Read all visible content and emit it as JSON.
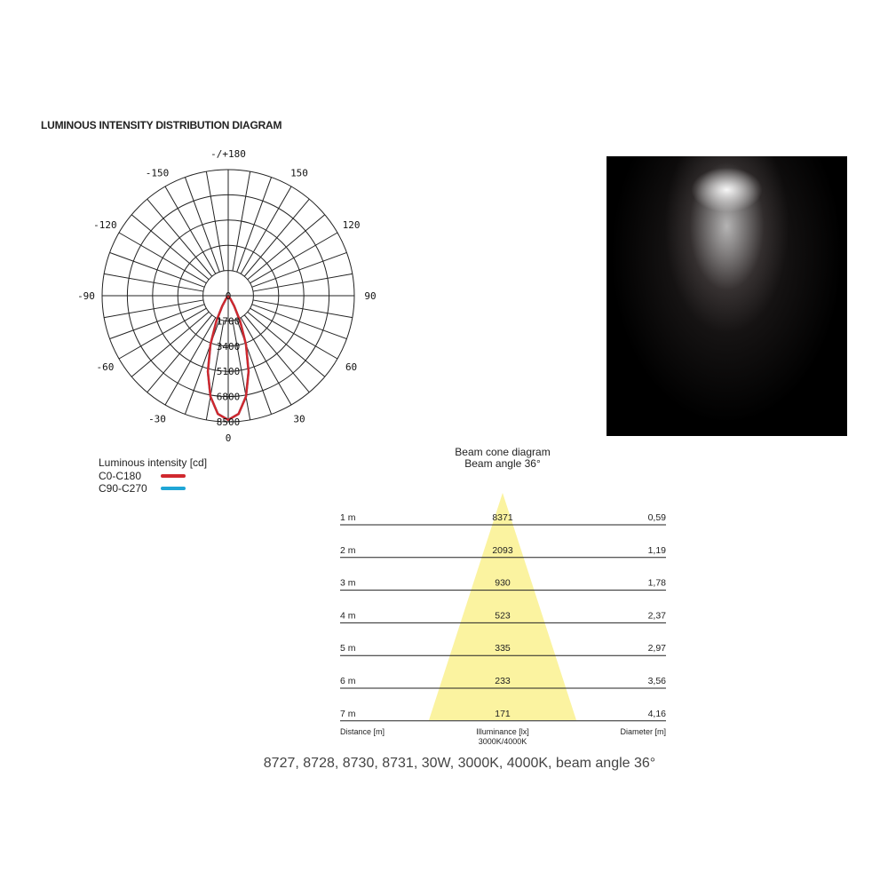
{
  "title": "LUMINOUS INTENSITY DISTRIBUTION DIAGRAM",
  "chart_data": [
    {
      "type": "polar",
      "angle_labels": [
        "-/+180",
        "150",
        "120",
        "90",
        "60",
        "30",
        "0",
        "-30",
        "-60",
        "-90",
        "-120",
        "-150"
      ],
      "radial_ticks": [
        0,
        1700,
        3400,
        5100,
        6800,
        8500
      ],
      "rmax": 8500,
      "legend_title": "Luminous intensity [cd]",
      "series": [
        {
          "name": "C0-C180",
          "color": "#d0282e",
          "angles": [
            0,
            5,
            10,
            15,
            20,
            25,
            30,
            35,
            40,
            45
          ],
          "values": [
            8371,
            8000,
            6900,
            5300,
            3500,
            1900,
            800,
            250,
            60,
            0
          ]
        },
        {
          "name": "C90-C270",
          "color": "#1fa6d6",
          "angles": [
            0,
            5,
            10,
            15,
            20,
            25,
            30,
            35,
            40,
            45
          ],
          "values": [
            8371,
            8000,
            6900,
            5300,
            3500,
            1900,
            800,
            250,
            60,
            0
          ]
        }
      ]
    },
    {
      "type": "table",
      "title": "Beam cone diagram",
      "subtitle": "Beam angle 36°",
      "beam_angle": 36,
      "cone_color": "#fbf3a0",
      "rows": [
        {
          "distance": "1 m",
          "illuminance": "8371",
          "diameter": "0,59"
        },
        {
          "distance": "2 m",
          "illuminance": "2093",
          "diameter": "1,19"
        },
        {
          "distance": "3 m",
          "illuminance": "930",
          "diameter": "1,78"
        },
        {
          "distance": "4 m",
          "illuminance": "523",
          "diameter": "2,37"
        },
        {
          "distance": "5 m",
          "illuminance": "335",
          "diameter": "2,97"
        },
        {
          "distance": "6 m",
          "illuminance": "233",
          "diameter": "3,56"
        },
        {
          "distance": "7 m",
          "illuminance": "171",
          "diameter": "4,16"
        }
      ],
      "columns": {
        "distance": "Distance [m]",
        "illuminance": "Illuminance [lx]",
        "illuminance_sub": "3000K/4000K",
        "diameter": "Diameter [m]"
      }
    }
  ],
  "caption": "8727, 8728, 8730, 8731, 30W, 3000K, 4000K, beam angle 36°"
}
